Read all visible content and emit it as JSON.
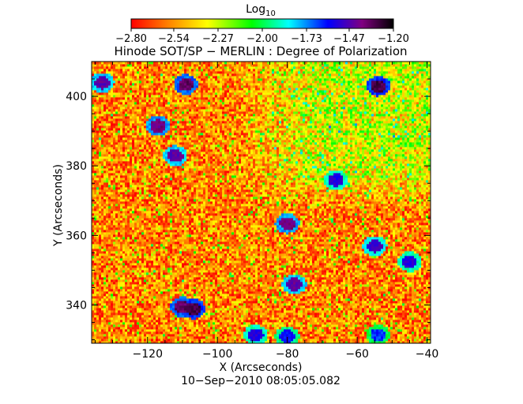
{
  "chart_data": {
    "type": "heatmap",
    "title": "Hinode SOT/SP − MERLIN : Degree of Polarization",
    "xlabel": "X (Arcseconds)",
    "ylabel": "Y (Arcseconds)",
    "timestamp": "10−Sep−2010 08:05:05.082",
    "xlim": [
      -136,
      -39
    ],
    "ylim": [
      329,
      410
    ],
    "x_ticks": [
      -120,
      -100,
      -80,
      -60,
      -40
    ],
    "x_tick_labels": [
      "−120",
      "−100",
      "−80",
      "−60",
      "−40"
    ],
    "y_ticks": [
      340,
      360,
      380,
      400
    ],
    "y_tick_labels": [
      "340",
      "360",
      "380",
      "400"
    ],
    "colorbar": {
      "label_main": "Log",
      "label_sub": "10",
      "range": [
        -2.8,
        -1.2
      ],
      "ticks": [
        -2.8,
        -2.54,
        -2.27,
        -2.0,
        -1.73,
        -1.47,
        -1.2
      ],
      "tick_labels": [
        "−2.80",
        "−2.54",
        "−2.27",
        "−2.00",
        "−1.73",
        "−1.47",
        "−1.20"
      ],
      "colors": [
        "#ff0000",
        "#ff8000",
        "#ffff00",
        "#00ff00",
        "#00ffff",
        "#0000ff",
        "#800080",
        "#000000"
      ]
    },
    "background_level": -2.75,
    "enhanced_region": {
      "x": [
        -95,
        -40
      ],
      "y": [
        368,
        410
      ],
      "level": -2.45
    },
    "features": [
      {
        "x": -107,
        "y": 339,
        "level": -1.35
      },
      {
        "x": -110,
        "y": 339.5,
        "level": -1.4
      },
      {
        "x": -117,
        "y": 391.5,
        "level": -1.45
      },
      {
        "x": -112,
        "y": 383,
        "level": -1.5
      },
      {
        "x": -109,
        "y": 403.5,
        "level": -1.4
      },
      {
        "x": -133,
        "y": 404,
        "level": -1.5
      },
      {
        "x": -54,
        "y": 403,
        "level": -1.35
      },
      {
        "x": -80,
        "y": 363.5,
        "level": -1.45
      },
      {
        "x": -78,
        "y": 346,
        "level": -1.5
      },
      {
        "x": -55,
        "y": 357,
        "level": -1.55
      },
      {
        "x": -45,
        "y": 352.5,
        "level": -1.6
      },
      {
        "x": -89,
        "y": 331.5,
        "level": -1.6
      },
      {
        "x": -80,
        "y": 331,
        "level": -1.65
      },
      {
        "x": -66,
        "y": 376,
        "level": -1.6
      },
      {
        "x": -54,
        "y": 331.5,
        "level": -1.7
      }
    ]
  }
}
